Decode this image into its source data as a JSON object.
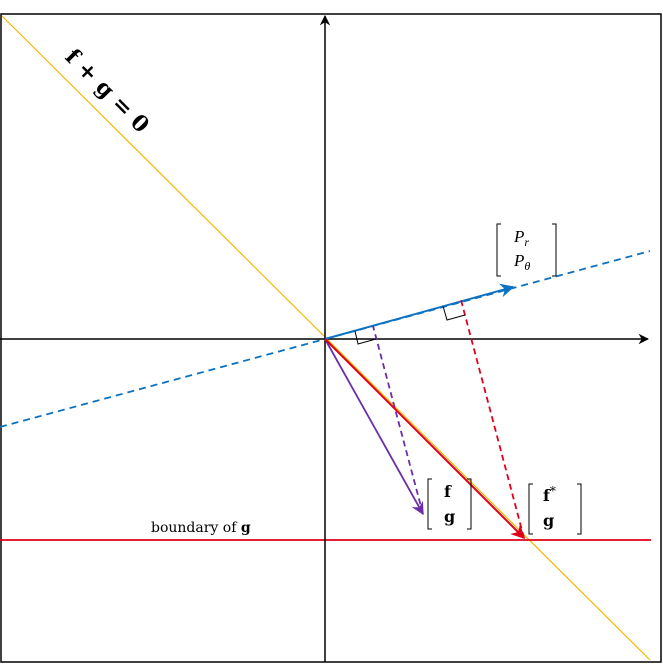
{
  "labels": {
    "line_equation": "f + g = 0",
    "boundary": "boundary of ",
    "boundary_symbol": "g",
    "p_vector_top": "P",
    "p_vector_top_sub": "r",
    "p_vector_bottom": "P",
    "p_vector_bottom_sub": "θ",
    "fg_vector_top": "f",
    "fg_vector_bottom": "g",
    "fstar_vector_top": "f",
    "fstar_vector_top_sup": "*",
    "fstar_vector_bottom": "g"
  },
  "colors": {
    "axis": "#000000",
    "equation_line": "#f5b800",
    "p_direction": "#0b72c2",
    "purple_vector": "#6a2ea8",
    "red_vector": "#e0001b",
    "frame": "#000000"
  }
}
